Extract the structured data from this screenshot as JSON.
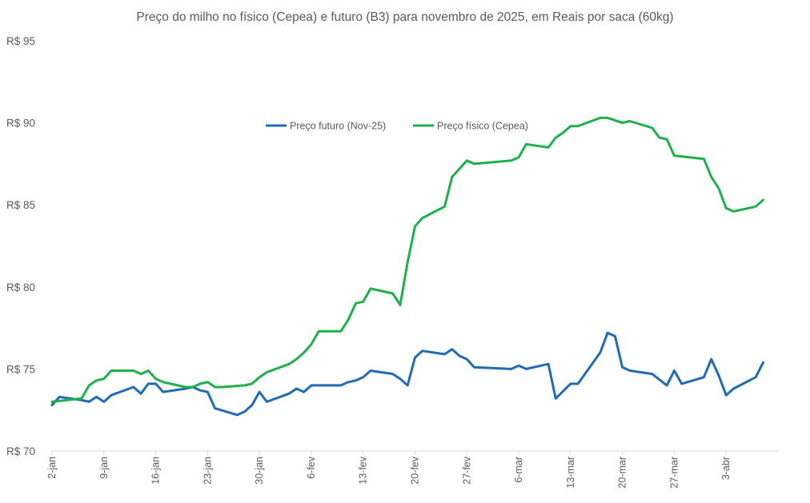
{
  "chart_data": {
    "type": "line",
    "title": "Preço do milho no físico (Cepea) e futuro (B3) para novembro de 2025, em Reais por saca (60kg)",
    "xlabel": "",
    "ylabel": "",
    "ylim": [
      70,
      95
    ],
    "yticks": [
      70,
      75,
      80,
      85,
      90,
      95
    ],
    "ytick_labels": [
      "R$ 70",
      "R$ 75",
      "R$ 80",
      "R$ 85",
      "R$ 90",
      "R$ 95"
    ],
    "x_range_days": [
      0,
      98
    ],
    "xticks": [
      {
        "day": 0,
        "label": "2-jan"
      },
      {
        "day": 7,
        "label": "9-jan"
      },
      {
        "day": 14,
        "label": "16-jan"
      },
      {
        "day": 21,
        "label": "23-jan"
      },
      {
        "day": 28,
        "label": "30-jan"
      },
      {
        "day": 35,
        "label": "6-fev"
      },
      {
        "day": 42,
        "label": "13-fev"
      },
      {
        "day": 49,
        "label": "20-fev"
      },
      {
        "day": 56,
        "label": "27-fev"
      },
      {
        "day": 63,
        "label": "6-mar"
      },
      {
        "day": 70,
        "label": "13-mar"
      },
      {
        "day": 77,
        "label": "20-mar"
      },
      {
        "day": 84,
        "label": "27-mar"
      },
      {
        "day": 91,
        "label": "3-abr"
      }
    ],
    "grid": false,
    "legend_position": "top-center",
    "series": [
      {
        "name": "Preço futuro (Nov-25)",
        "color": "#1F6BB5",
        "points": [
          [
            0,
            72.8
          ],
          [
            1,
            73.3
          ],
          [
            4,
            73.1
          ],
          [
            5,
            73.0
          ],
          [
            6,
            73.3
          ],
          [
            7,
            73.0
          ],
          [
            8,
            73.4
          ],
          [
            11,
            73.9
          ],
          [
            12,
            73.5
          ],
          [
            13,
            74.1
          ],
          [
            14,
            74.1
          ],
          [
            15,
            73.6
          ],
          [
            18,
            73.8
          ],
          [
            19,
            73.9
          ],
          [
            20,
            73.7
          ],
          [
            21,
            73.6
          ],
          [
            22,
            72.6
          ],
          [
            25,
            72.2
          ],
          [
            26,
            72.4
          ],
          [
            27,
            72.8
          ],
          [
            28,
            73.6
          ],
          [
            29,
            73.0
          ],
          [
            32,
            73.5
          ],
          [
            33,
            73.8
          ],
          [
            34,
            73.6
          ],
          [
            35,
            74.0
          ],
          [
            39,
            74.0
          ],
          [
            40,
            74.2
          ],
          [
            41,
            74.3
          ],
          [
            42,
            74.5
          ],
          [
            43,
            74.9
          ],
          [
            46,
            74.7
          ],
          [
            47,
            74.4
          ],
          [
            48,
            74.0
          ],
          [
            49,
            75.7
          ],
          [
            50,
            76.1
          ],
          [
            53,
            75.9
          ],
          [
            54,
            76.2
          ],
          [
            55,
            75.8
          ],
          [
            56,
            75.6
          ],
          [
            57,
            75.1
          ],
          [
            62,
            75.0
          ],
          [
            63,
            75.2
          ],
          [
            64,
            75.0
          ],
          [
            67,
            75.3
          ],
          [
            68,
            73.2
          ],
          [
            70,
            74.1
          ],
          [
            71,
            74.1
          ],
          [
            74,
            76.0
          ],
          [
            75,
            77.2
          ],
          [
            76,
            77.0
          ],
          [
            77,
            75.1
          ],
          [
            78,
            74.9
          ],
          [
            81,
            74.7
          ],
          [
            83,
            74.0
          ],
          [
            84,
            74.9
          ],
          [
            85,
            74.1
          ],
          [
            88,
            74.5
          ],
          [
            89,
            75.6
          ],
          [
            90,
            74.6
          ],
          [
            91,
            73.4
          ],
          [
            92,
            73.8
          ],
          [
            95,
            74.5
          ],
          [
            96,
            75.4
          ]
        ]
      },
      {
        "name": "Preço físico (Cepea)",
        "color": "#1DB04B",
        "points": [
          [
            0,
            73.0
          ],
          [
            4,
            73.2
          ],
          [
            5,
            74.0
          ],
          [
            6,
            74.3
          ],
          [
            7,
            74.4
          ],
          [
            8,
            74.9
          ],
          [
            11,
            74.9
          ],
          [
            12,
            74.7
          ],
          [
            13,
            74.9
          ],
          [
            14,
            74.4
          ],
          [
            15,
            74.2
          ],
          [
            18,
            73.9
          ],
          [
            19,
            73.9
          ],
          [
            20,
            74.1
          ],
          [
            21,
            74.2
          ],
          [
            22,
            73.9
          ],
          [
            23,
            73.9
          ],
          [
            26,
            74.0
          ],
          [
            27,
            74.1
          ],
          [
            28,
            74.5
          ],
          [
            29,
            74.8
          ],
          [
            32,
            75.3
          ],
          [
            33,
            75.6
          ],
          [
            34,
            76.0
          ],
          [
            35,
            76.5
          ],
          [
            36,
            77.3
          ],
          [
            39,
            77.3
          ],
          [
            40,
            78.0
          ],
          [
            41,
            79.0
          ],
          [
            42,
            79.1
          ],
          [
            43,
            79.9
          ],
          [
            46,
            79.6
          ],
          [
            47,
            78.9
          ],
          [
            48,
            81.5
          ],
          [
            49,
            83.7
          ],
          [
            50,
            84.2
          ],
          [
            53,
            84.9
          ],
          [
            54,
            86.7
          ],
          [
            55,
            87.2
          ],
          [
            56,
            87.7
          ],
          [
            57,
            87.5
          ],
          [
            62,
            87.7
          ],
          [
            63,
            87.9
          ],
          [
            64,
            88.7
          ],
          [
            67,
            88.5
          ],
          [
            68,
            89.1
          ],
          [
            69,
            89.4
          ],
          [
            70,
            89.8
          ],
          [
            71,
            89.8
          ],
          [
            74,
            90.3
          ],
          [
            75,
            90.3
          ],
          [
            77,
            90.0
          ],
          [
            78,
            90.1
          ],
          [
            81,
            89.7
          ],
          [
            82,
            89.1
          ],
          [
            83,
            89.0
          ],
          [
            84,
            88.0
          ],
          [
            88,
            87.8
          ],
          [
            89,
            86.7
          ],
          [
            90,
            86.0
          ],
          [
            91,
            84.8
          ],
          [
            92,
            84.6
          ],
          [
            95,
            84.9
          ],
          [
            96,
            85.3
          ]
        ]
      }
    ]
  }
}
